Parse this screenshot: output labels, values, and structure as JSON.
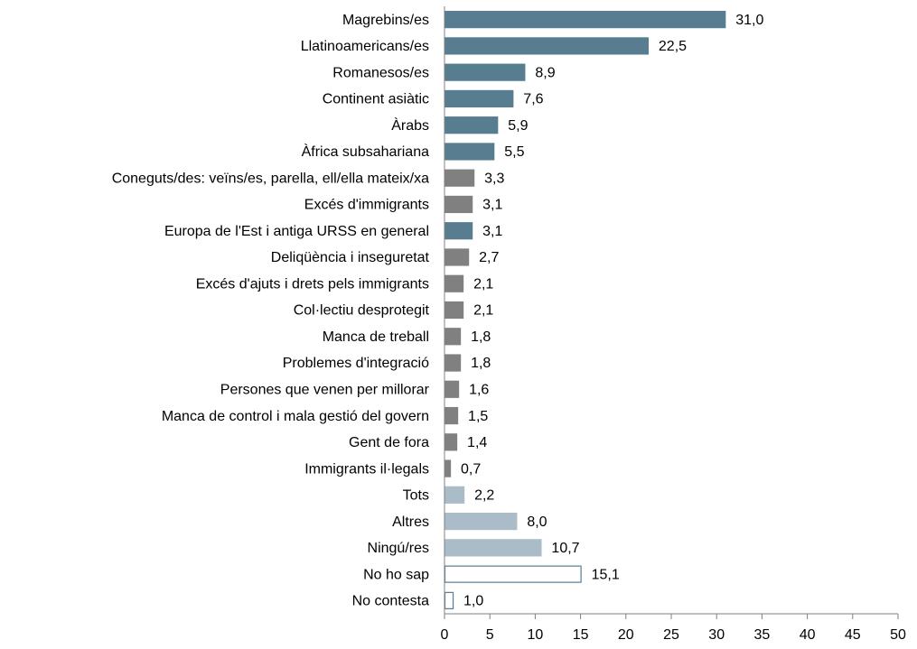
{
  "chart_data": {
    "type": "barh",
    "categories": [
      "Magrebins/es",
      "Llatinoamericans/es",
      "Romanesos/es",
      "Continent asiàtic",
      "Àrabs",
      "Àfrica subsahariana",
      "Coneguts/des: veïns/es, parella, ell/ella mateix/xa",
      "Excés d'immigrants",
      "Europa de l'Est i antiga URSS en general",
      "Deliqüència i inseguretat",
      "Excés d'ajuts i drets pels immigrants",
      "Col·lectiu desprotegit",
      "Manca de treball",
      "Problemes d'integració",
      "Persones que venen per millorar",
      "Manca de control i mala gestió del govern",
      "Gent de fora",
      "Immigrants il·legals",
      "Tots",
      "Altres",
      "Ningú/res",
      "No ho sap",
      "No contesta"
    ],
    "values": [
      31.0,
      22.5,
      8.9,
      7.6,
      5.9,
      5.5,
      3.3,
      3.1,
      3.1,
      2.7,
      2.1,
      2.1,
      1.8,
      1.8,
      1.6,
      1.5,
      1.4,
      0.7,
      2.2,
      8.0,
      10.7,
      15.1,
      1.0
    ],
    "value_labels": [
      "31,0",
      "22,5",
      "8,9",
      "7,6",
      "5,9",
      "5,5",
      "3,3",
      "3,1",
      "3,1",
      "2,7",
      "2,1",
      "2,1",
      "1,8",
      "1,8",
      "1,6",
      "1,5",
      "1,4",
      "0,7",
      "2,2",
      "8,0",
      "10,7",
      "15,1",
      "1,0"
    ],
    "colors": [
      "#587c90",
      "#587c90",
      "#587c90",
      "#587c90",
      "#587c90",
      "#587c90",
      "#808080",
      "#808080",
      "#587c90",
      "#808080",
      "#808080",
      "#808080",
      "#808080",
      "#808080",
      "#808080",
      "#808080",
      "#808080",
      "#808080",
      "#a9bcc8",
      "#a9bcc8",
      "#a9bcc8",
      "#ffffff",
      "#ffffff"
    ],
    "edge_colors": [
      "#587c90",
      "#587c90",
      "#587c90",
      "#587c90",
      "#587c90",
      "#587c90",
      "#808080",
      "#808080",
      "#587c90",
      "#808080",
      "#808080",
      "#808080",
      "#808080",
      "#808080",
      "#808080",
      "#808080",
      "#808080",
      "#808080",
      "#a9bcc8",
      "#a9bcc8",
      "#a9bcc8",
      "#587c90",
      "#587c90"
    ],
    "xlim": [
      0,
      50
    ],
    "xticks": [
      0,
      5,
      10,
      15,
      20,
      25,
      30,
      35,
      40,
      45,
      50
    ]
  }
}
